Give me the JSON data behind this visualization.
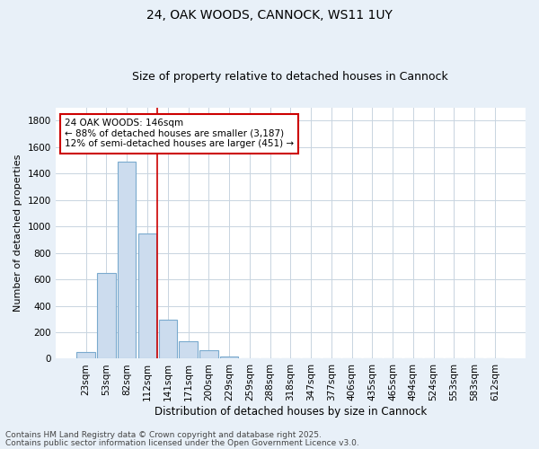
{
  "title1": "24, OAK WOODS, CANNOCK, WS11 1UY",
  "title2": "Size of property relative to detached houses in Cannock",
  "xlabel": "Distribution of detached houses by size in Cannock",
  "ylabel": "Number of detached properties",
  "categories": [
    "23sqm",
    "53sqm",
    "82sqm",
    "112sqm",
    "141sqm",
    "171sqm",
    "200sqm",
    "229sqm",
    "259sqm",
    "288sqm",
    "318sqm",
    "347sqm",
    "377sqm",
    "406sqm",
    "435sqm",
    "465sqm",
    "494sqm",
    "524sqm",
    "553sqm",
    "583sqm",
    "612sqm"
  ],
  "values": [
    50,
    650,
    1490,
    950,
    295,
    130,
    65,
    20,
    5,
    2,
    1,
    0,
    0,
    0,
    0,
    0,
    0,
    0,
    0,
    0,
    0
  ],
  "bar_color": "#ccdcee",
  "bar_edge_color": "#7aaace",
  "red_line_x": 3.5,
  "annotation_text": "24 OAK WOODS: 146sqm\n← 88% of detached houses are smaller (3,187)\n12% of semi-detached houses are larger (451) →",
  "annotation_box_color": "#ffffff",
  "annotation_box_edge": "#cc0000",
  "red_line_color": "#cc0000",
  "ylim": [
    0,
    1900
  ],
  "yticks": [
    0,
    200,
    400,
    600,
    800,
    1000,
    1200,
    1400,
    1600,
    1800
  ],
  "grid_color": "#c8d4e0",
  "bg_color": "#e8f0f8",
  "plot_bg_color": "#ffffff",
  "footer1": "Contains HM Land Registry data © Crown copyright and database right 2025.",
  "footer2": "Contains public sector information licensed under the Open Government Licence v3.0.",
  "title1_fontsize": 10,
  "title2_fontsize": 9,
  "xlabel_fontsize": 8.5,
  "ylabel_fontsize": 8,
  "tick_fontsize": 7.5,
  "annotation_fontsize": 7.5,
  "footer_fontsize": 6.5
}
